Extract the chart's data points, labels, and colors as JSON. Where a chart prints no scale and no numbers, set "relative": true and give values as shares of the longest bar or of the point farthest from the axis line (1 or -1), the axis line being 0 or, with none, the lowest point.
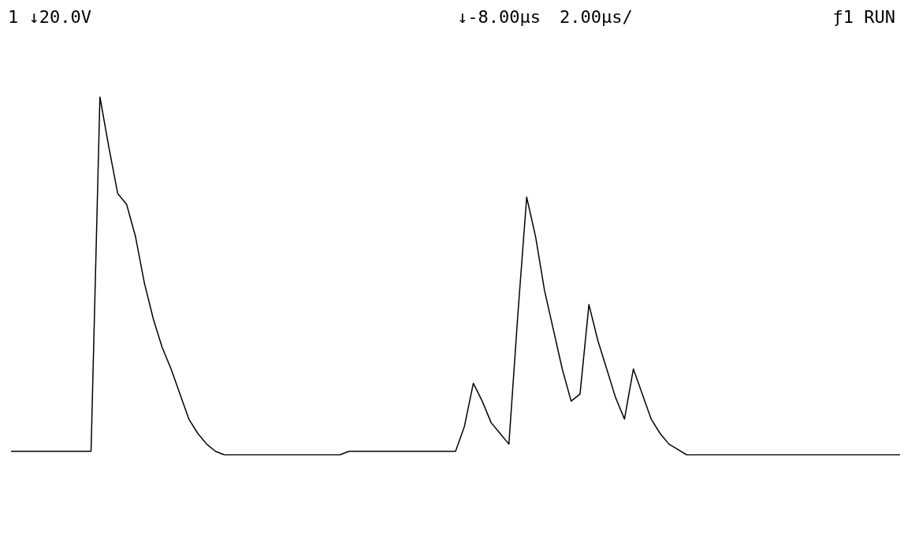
{
  "chart_data": {
    "type": "line",
    "relative": true,
    "categories": [
      null,
      null,
      null,
      null,
      null,
      null,
      null,
      null,
      null,
      null,
      null,
      null,
      null,
      null,
      null,
      null,
      null,
      null,
      null,
      null,
      null,
      null,
      null,
      null,
      null,
      null,
      null,
      null,
      null,
      null,
      null,
      null,
      null,
      null,
      null,
      null,
      null,
      null,
      null,
      null,
      null,
      null,
      null,
      null,
      null,
      null,
      null,
      null,
      null,
      null,
      null,
      null,
      null,
      null,
      null,
      null,
      null,
      null,
      null,
      null,
      null,
      null,
      null,
      null,
      null,
      null,
      null,
      null,
      null,
      null,
      null,
      null,
      null,
      null,
      null,
      null,
      null,
      null,
      null,
      null,
      null,
      null,
      null,
      null,
      null,
      null,
      null,
      null,
      null,
      null,
      null,
      null,
      null,
      null,
      null,
      null,
      null,
      null,
      null,
      null,
      null
    ],
    "series": [
      {
        "color": "#000000",
        "values": [
          0.01,
          0.01,
          0.01,
          0.01,
          0.01,
          0.01,
          0.01,
          0.01,
          0.01,
          0.01,
          1.0,
          0.86,
          0.73,
          0.7,
          0.61,
          0.48,
          0.38,
          0.3,
          0.24,
          0.17,
          0.1,
          0.06,
          0.03,
          0.01,
          0,
          0,
          0,
          0,
          0,
          0,
          0,
          0,
          0,
          0,
          0,
          0,
          0,
          0,
          0.01,
          0.01,
          0.01,
          0.01,
          0.01,
          0.01,
          0.01,
          0.01,
          0.01,
          0.01,
          0.01,
          0.01,
          0.01,
          0.08,
          0.2,
          0.15,
          0.09,
          0.06,
          0.03,
          0.39,
          0.72,
          0.61,
          0.46,
          0.35,
          0.24,
          0.15,
          0.17,
          0.42,
          0.32,
          0.24,
          0.16,
          0.1,
          0.24,
          0.17,
          0.1,
          0.06,
          0.03,
          0.015,
          0,
          0,
          0,
          0,
          0,
          0,
          0,
          0,
          0,
          0,
          0,
          0,
          0,
          0,
          0,
          0,
          0,
          0,
          0,
          0,
          0,
          0,
          0,
          0,
          0
        ]
      }
    ],
    "marker": "none",
    "grid": false,
    "annotations": [
      "1 ↓20.0V",
      "↓-8.00µs",
      "2.00µs/",
      "ƒ1 RUN"
    ]
  }
}
